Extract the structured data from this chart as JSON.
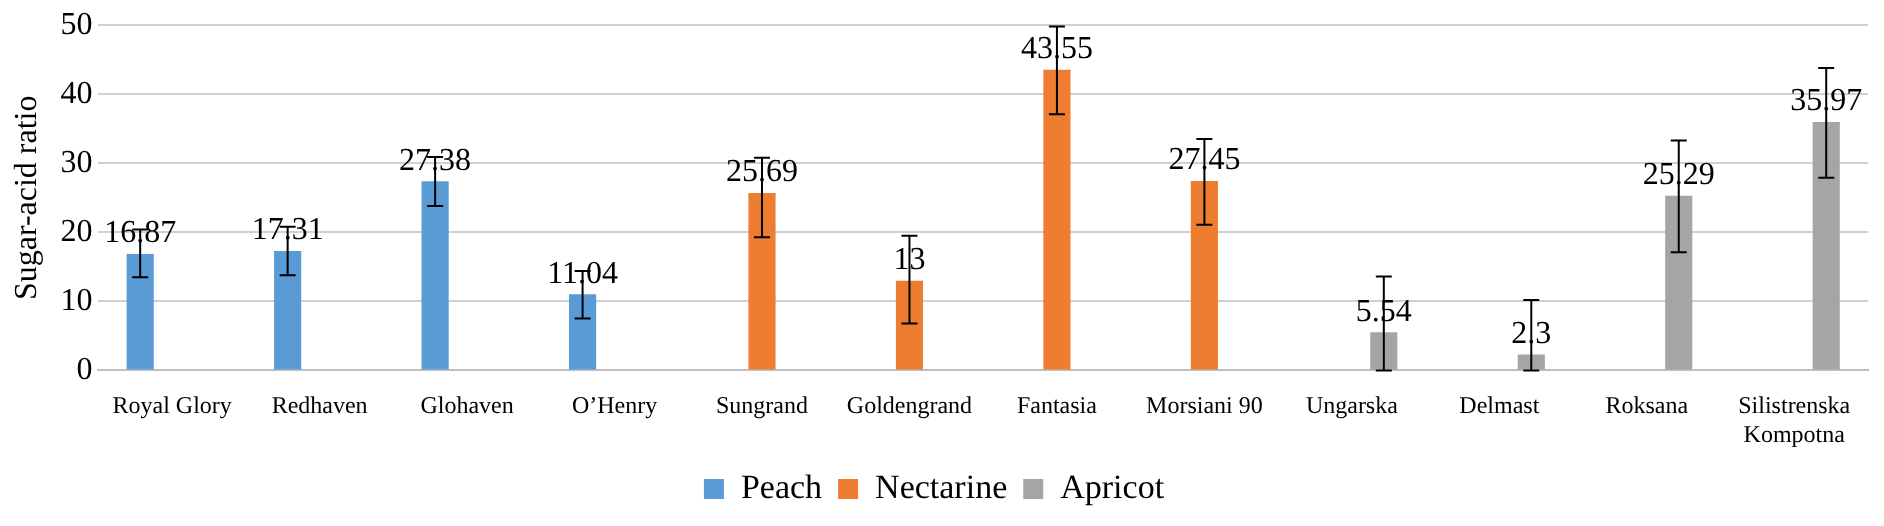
{
  "chart_data": {
    "type": "bar",
    "ylabel": "Sugar-acid ratio",
    "categories": [
      "Royal Glory",
      "Redhaven",
      "Glohaven",
      "O’Henry",
      "Sungrand",
      "Goldengrand",
      "Fantasia",
      "Morsiani 90",
      "Ungarska",
      "Delmast",
      "Roksana",
      "Silistrenska Kompotna"
    ],
    "series": [
      {
        "name": "Peach",
        "color": "#5b9bd5",
        "values": [
          16.87,
          17.31,
          27.38,
          11.04,
          null,
          null,
          null,
          null,
          null,
          null,
          null,
          null
        ],
        "errors": [
          [
            13.5,
            20.4
          ],
          [
            13.8,
            20.8
          ],
          [
            23.8,
            30.9
          ],
          [
            7.5,
            14.4
          ],
          null,
          null,
          null,
          null,
          null,
          null,
          null,
          null
        ]
      },
      {
        "name": "Nectarine",
        "color": "#ed7d31",
        "values": [
          null,
          null,
          null,
          null,
          25.69,
          13,
          43.55,
          27.45,
          null,
          null,
          null,
          null
        ],
        "errors": [
          null,
          null,
          null,
          null,
          [
            19.3,
            30.8
          ],
          [
            6.8,
            19.5
          ],
          [
            37.1,
            49.8
          ],
          [
            21.1,
            33.5
          ],
          null,
          null,
          null,
          null
        ]
      },
      {
        "name": "Apricot",
        "color": "#a5a5a5",
        "values": [
          null,
          null,
          null,
          null,
          null,
          null,
          null,
          null,
          5.54,
          2.3,
          25.29,
          35.97
        ],
        "errors": [
          null,
          null,
          null,
          null,
          null,
          null,
          null,
          null,
          [
            0,
            13.6
          ],
          [
            0,
            10.2
          ],
          [
            17.1,
            33.3
          ],
          [
            27.9,
            43.8
          ]
        ]
      }
    ],
    "ylim": [
      0,
      50
    ],
    "yticks": [
      0,
      10,
      20,
      30,
      40,
      50
    ],
    "grid": "y",
    "legend": "bottom",
    "data_labels": true
  }
}
